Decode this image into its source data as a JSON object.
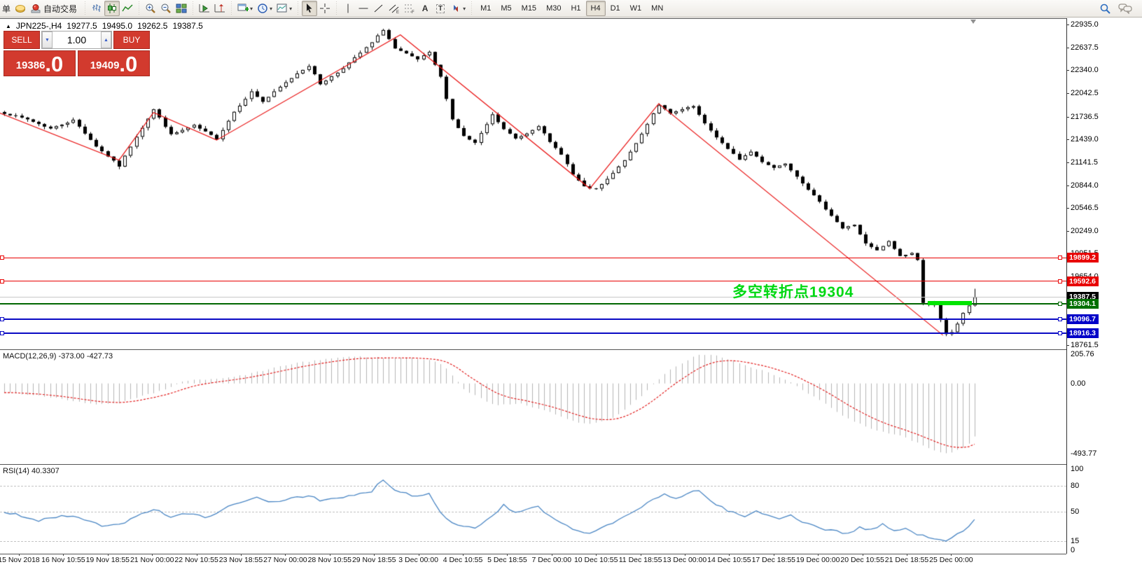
{
  "toolbar": {
    "order_label": "单",
    "autotrade_label": "自动交易",
    "timeframes": [
      "M1",
      "M5",
      "M15",
      "M30",
      "H1",
      "H4",
      "D1",
      "W1",
      "MN"
    ],
    "active_timeframe": "H4"
  },
  "icons": {
    "dropdown": "▾",
    "spin_down": "▼",
    "spin_up": "▲",
    "symbol_triangle": "▲",
    "text_tool": "A",
    "label_tool": "T"
  },
  "chart": {
    "symbol_period": "JPN225-,H4",
    "open": "19277.5",
    "high": "19495.0",
    "low": "19262.5",
    "close": "19387.5"
  },
  "trade_panel": {
    "sell_label": "SELL",
    "buy_label": "BUY",
    "volume": "1.00",
    "sell_price_main": "19386",
    "sell_price_big": ".0",
    "buy_price_main": "19409",
    "buy_price_big": ".0"
  },
  "price_axis": {
    "ticks": [
      "22935.0",
      "22637.5",
      "22340.0",
      "22042.5",
      "21736.5",
      "21439.0",
      "21141.5",
      "20844.0",
      "20546.5",
      "20249.0",
      "19951.5",
      "19654.0",
      "19356.5",
      "19059.0",
      "18761.5"
    ]
  },
  "lines": [
    {
      "name": "resistance-line-1",
      "price": 19899.2,
      "label": "19899.2",
      "color": "#e80000",
      "bg": "#e80000",
      "thickness": 1,
      "left_handle": true,
      "right_handle": true
    },
    {
      "name": "resistance-line-2",
      "price": 19592.6,
      "label": "19592.6",
      "color": "#e80000",
      "bg": "#e80000",
      "thickness": 1,
      "left_handle": true,
      "right_handle": true
    },
    {
      "name": "current-price-line",
      "price": 19387.5,
      "label": "19387.5",
      "color": "#c8c8c8",
      "bg": "#000000",
      "thickness": 1,
      "left_handle": false,
      "right_handle": false
    },
    {
      "name": "pivot-line",
      "price": 19304.1,
      "label": "19304.1",
      "color": "#006600",
      "bg": "#007000",
      "thickness": 2,
      "left_handle": false,
      "right_handle": true
    },
    {
      "name": "support-line-1",
      "price": 19096.7,
      "label": "19096.7",
      "color": "#0a0ac4",
      "bg": "#0000c8",
      "thickness": 2,
      "left_handle": true,
      "right_handle": true
    },
    {
      "name": "support-line-2",
      "price": 18916.3,
      "label": "18916.3",
      "color": "#0a0ac4",
      "bg": "#0000c8",
      "thickness": 2,
      "left_handle": true,
      "right_handle": true
    }
  ],
  "annotation": {
    "text": "多空转折点19304",
    "color": "#00d813"
  },
  "indicators": {
    "macd": {
      "label": "MACD(12,26,9) -373.00 -427.73",
      "scale": [
        "205.76",
        "0.00",
        "-493.77"
      ]
    },
    "rsi": {
      "label": "RSI(14) 40.3307",
      "scale": [
        "100",
        "80",
        "50",
        "15",
        "0"
      ],
      "dashed_levels": [
        80,
        50,
        15
      ]
    }
  },
  "time_axis": {
    "labels": [
      "15 Nov 2018",
      "16 Nov 10:55",
      "19 Nov 18:55",
      "21 Nov 00:00",
      "22 Nov 10:55",
      "23 Nov 18:55",
      "27 Nov 00:00",
      "28 Nov 10:55",
      "29 Nov 18:55",
      "3 Dec 00:00",
      "4 Dec 10:55",
      "5 Dec 18:55",
      "7 Dec 00:00",
      "10 Dec 10:55",
      "11 Dec 18:55",
      "13 Dec 00:00",
      "14 Dec 10:55",
      "17 Dec 18:55",
      "19 Dec 00:00",
      "20 Dec 10:55",
      "21 Dec 18:55",
      "25 Dec 00:00"
    ]
  },
  "chart_data": {
    "type": "candlestick",
    "symbol": "JPN225-",
    "timeframe": "H4",
    "candle_count": 170,
    "seed": 7,
    "price_range": {
      "top": 22935.0,
      "bottom": 18761.5
    },
    "last_candle": {
      "o": 19277.5,
      "h": 19495.0,
      "l": 19262.5,
      "c": 19387.5
    },
    "close_path": [
      [
        0,
        21780
      ],
      [
        4,
        21700
      ],
      [
        8,
        21580
      ],
      [
        12,
        21690
      ],
      [
        16,
        21350
      ],
      [
        20,
        21090
      ],
      [
        23,
        21480
      ],
      [
        26,
        21830
      ],
      [
        29,
        21500
      ],
      [
        33,
        21620
      ],
      [
        37,
        21450
      ],
      [
        40,
        21800
      ],
      [
        43,
        22060
      ],
      [
        45,
        21930
      ],
      [
        48,
        22120
      ],
      [
        51,
        22300
      ],
      [
        53,
        22400
      ],
      [
        55,
        22160
      ],
      [
        58,
        22310
      ],
      [
        61,
        22500
      ],
      [
        64,
        22700
      ],
      [
        66,
        22870
      ],
      [
        68,
        22620
      ],
      [
        70,
        22550
      ],
      [
        72,
        22480
      ],
      [
        74,
        22570
      ],
      [
        76,
        22250
      ],
      [
        78,
        21700
      ],
      [
        80,
        21480
      ],
      [
        82,
        21390
      ],
      [
        85,
        21760
      ],
      [
        87,
        21570
      ],
      [
        89,
        21450
      ],
      [
        91,
        21520
      ],
      [
        93,
        21620
      ],
      [
        95,
        21400
      ],
      [
        97,
        21250
      ],
      [
        99,
        20980
      ],
      [
        101,
        20820
      ],
      [
        103,
        20790
      ],
      [
        105,
        20920
      ],
      [
        107,
        21080
      ],
      [
        109,
        21270
      ],
      [
        111,
        21510
      ],
      [
        113,
        21780
      ],
      [
        114,
        21890
      ],
      [
        116,
        21770
      ],
      [
        118,
        21830
      ],
      [
        120,
        21870
      ],
      [
        122,
        21640
      ],
      [
        124,
        21470
      ],
      [
        126,
        21310
      ],
      [
        128,
        21180
      ],
      [
        130,
        21280
      ],
      [
        132,
        21150
      ],
      [
        134,
        21070
      ],
      [
        136,
        21130
      ],
      [
        138,
        20960
      ],
      [
        140,
        20790
      ],
      [
        142,
        20620
      ],
      [
        144,
        20450
      ],
      [
        146,
        20280
      ],
      [
        148,
        20330
      ],
      [
        150,
        20080
      ],
      [
        152,
        19990
      ],
      [
        154,
        20110
      ],
      [
        156,
        19920
      ],
      [
        158,
        19960
      ],
      [
        159,
        19870
      ],
      [
        160,
        19310
      ],
      [
        161,
        19290
      ],
      [
        162,
        19300
      ],
      [
        163,
        19090
      ],
      [
        164,
        18905
      ],
      [
        165,
        18930
      ],
      [
        166,
        19040
      ],
      [
        167,
        19180
      ],
      [
        168,
        19277.5
      ],
      [
        169,
        19387.5
      ]
    ],
    "trendline_points": [
      [
        -1,
        21790
      ],
      [
        20,
        21170
      ],
      [
        26,
        21790
      ],
      [
        37,
        21430
      ],
      [
        69,
        22800
      ],
      [
        102,
        20800
      ],
      [
        114,
        21905
      ],
      [
        163.5,
        18890
      ]
    ],
    "pivot_segment": {
      "price": 19304.1,
      "bar_start": 160.8,
      "bar_end": 168.5
    },
    "macd_path": [
      [
        0,
        -60
      ],
      [
        4,
        -80
      ],
      [
        8,
        -95
      ],
      [
        12,
        -120
      ],
      [
        16,
        -150
      ],
      [
        20,
        -140
      ],
      [
        24,
        -90
      ],
      [
        28,
        -45
      ],
      [
        31,
        15
      ],
      [
        34,
        25
      ],
      [
        37,
        30
      ],
      [
        40,
        45
      ],
      [
        44,
        80
      ],
      [
        47,
        110
      ],
      [
        50,
        135
      ],
      [
        53,
        155
      ],
      [
        56,
        172
      ],
      [
        59,
        185
      ],
      [
        62,
        188
      ],
      [
        65,
        182
      ],
      [
        68,
        180
      ],
      [
        71,
        178
      ],
      [
        74,
        165
      ],
      [
        76,
        140
      ],
      [
        78,
        60
      ],
      [
        80,
        -40
      ],
      [
        82,
        -85
      ],
      [
        84,
        -130
      ],
      [
        86,
        -150
      ],
      [
        88,
        -145
      ],
      [
        90,
        -140
      ],
      [
        92,
        -165
      ],
      [
        94,
        -190
      ],
      [
        96,
        -220
      ],
      [
        98,
        -250
      ],
      [
        100,
        -272
      ],
      [
        102,
        -285
      ],
      [
        104,
        -270
      ],
      [
        106,
        -240
      ],
      [
        108,
        -185
      ],
      [
        110,
        -120
      ],
      [
        112,
        -50
      ],
      [
        114,
        30
      ],
      [
        116,
        95
      ],
      [
        118,
        145
      ],
      [
        121,
        205
      ],
      [
        124,
        195
      ],
      [
        126,
        170
      ],
      [
        128,
        140
      ],
      [
        130,
        115
      ],
      [
        132,
        90
      ],
      [
        134,
        60
      ],
      [
        136,
        25
      ],
      [
        138,
        -15
      ],
      [
        140,
        -70
      ],
      [
        142,
        -120
      ],
      [
        144,
        -175
      ],
      [
        146,
        -225
      ],
      [
        148,
        -265
      ],
      [
        150,
        -300
      ],
      [
        152,
        -330
      ],
      [
        154,
        -350
      ],
      [
        156,
        -370
      ],
      [
        158,
        -400
      ],
      [
        160,
        -440
      ],
      [
        162,
        -475
      ],
      [
        164,
        -493.77
      ],
      [
        165,
        -490
      ],
      [
        166,
        -470
      ],
      [
        167,
        -450
      ],
      [
        168,
        -420
      ],
      [
        169,
        -373
      ]
    ],
    "macd_last": -373.0,
    "macd_signal_last": -427.73,
    "rsi_path": [
      [
        0,
        50
      ],
      [
        3,
        45
      ],
      [
        6,
        39
      ],
      [
        9,
        43
      ],
      [
        12,
        45
      ],
      [
        15,
        37
      ],
      [
        18,
        32
      ],
      [
        20,
        34
      ],
      [
        23,
        45
      ],
      [
        26,
        53
      ],
      [
        29,
        44
      ],
      [
        32,
        47
      ],
      [
        35,
        43
      ],
      [
        38,
        52
      ],
      [
        41,
        60
      ],
      [
        44,
        66
      ],
      [
        47,
        61
      ],
      [
        50,
        66
      ],
      [
        53,
        69
      ],
      [
        55,
        62
      ],
      [
        58,
        65
      ],
      [
        61,
        69
      ],
      [
        64,
        74
      ],
      [
        66,
        88
      ],
      [
        68,
        76
      ],
      [
        70,
        71
      ],
      [
        72,
        68
      ],
      [
        74,
        71
      ],
      [
        76,
        50
      ],
      [
        78,
        36
      ],
      [
        80,
        33
      ],
      [
        82,
        30
      ],
      [
        85,
        45
      ],
      [
        87,
        57
      ],
      [
        89,
        48
      ],
      [
        91,
        52
      ],
      [
        93,
        55
      ],
      [
        95,
        44
      ],
      [
        97,
        36
      ],
      [
        99,
        28
      ],
      [
        101,
        25
      ],
      [
        103,
        26
      ],
      [
        105,
        33
      ],
      [
        107,
        40
      ],
      [
        109,
        48
      ],
      [
        111,
        55
      ],
      [
        113,
        63
      ],
      [
        115,
        70
      ],
      [
        117,
        65
      ],
      [
        119,
        72
      ],
      [
        121,
        75
      ],
      [
        123,
        62
      ],
      [
        125,
        55
      ],
      [
        127,
        48
      ],
      [
        129,
        44
      ],
      [
        131,
        50
      ],
      [
        133,
        45
      ],
      [
        135,
        42
      ],
      [
        137,
        46
      ],
      [
        139,
        38
      ],
      [
        141,
        33
      ],
      [
        143,
        29
      ],
      [
        145,
        26
      ],
      [
        147,
        24
      ],
      [
        149,
        31
      ],
      [
        151,
        28
      ],
      [
        153,
        34
      ],
      [
        155,
        27
      ],
      [
        157,
        30
      ],
      [
        159,
        22
      ],
      [
        161,
        20
      ],
      [
        163,
        17
      ],
      [
        164,
        16
      ],
      [
        165,
        20
      ],
      [
        166,
        24
      ],
      [
        167,
        28
      ],
      [
        168,
        32
      ],
      [
        169,
        40.33
      ]
    ],
    "rsi_last": 40.3307
  }
}
